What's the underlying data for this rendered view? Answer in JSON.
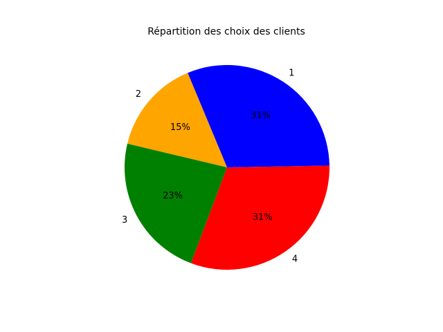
{
  "chart_data": {
    "type": "pie",
    "title": "Répartition des choix des clients",
    "slices": [
      {
        "label": "1",
        "value": 31,
        "pct_label": "31%",
        "color": "#0000ff"
      },
      {
        "label": "2",
        "value": 15,
        "pct_label": "15%",
        "color": "#ffa500"
      },
      {
        "label": "3",
        "value": 23,
        "pct_label": "23%",
        "color": "#008000"
      },
      {
        "label": "4",
        "value": 31,
        "pct_label": "31%",
        "color": "#ff0000"
      }
    ],
    "legend": "none"
  }
}
